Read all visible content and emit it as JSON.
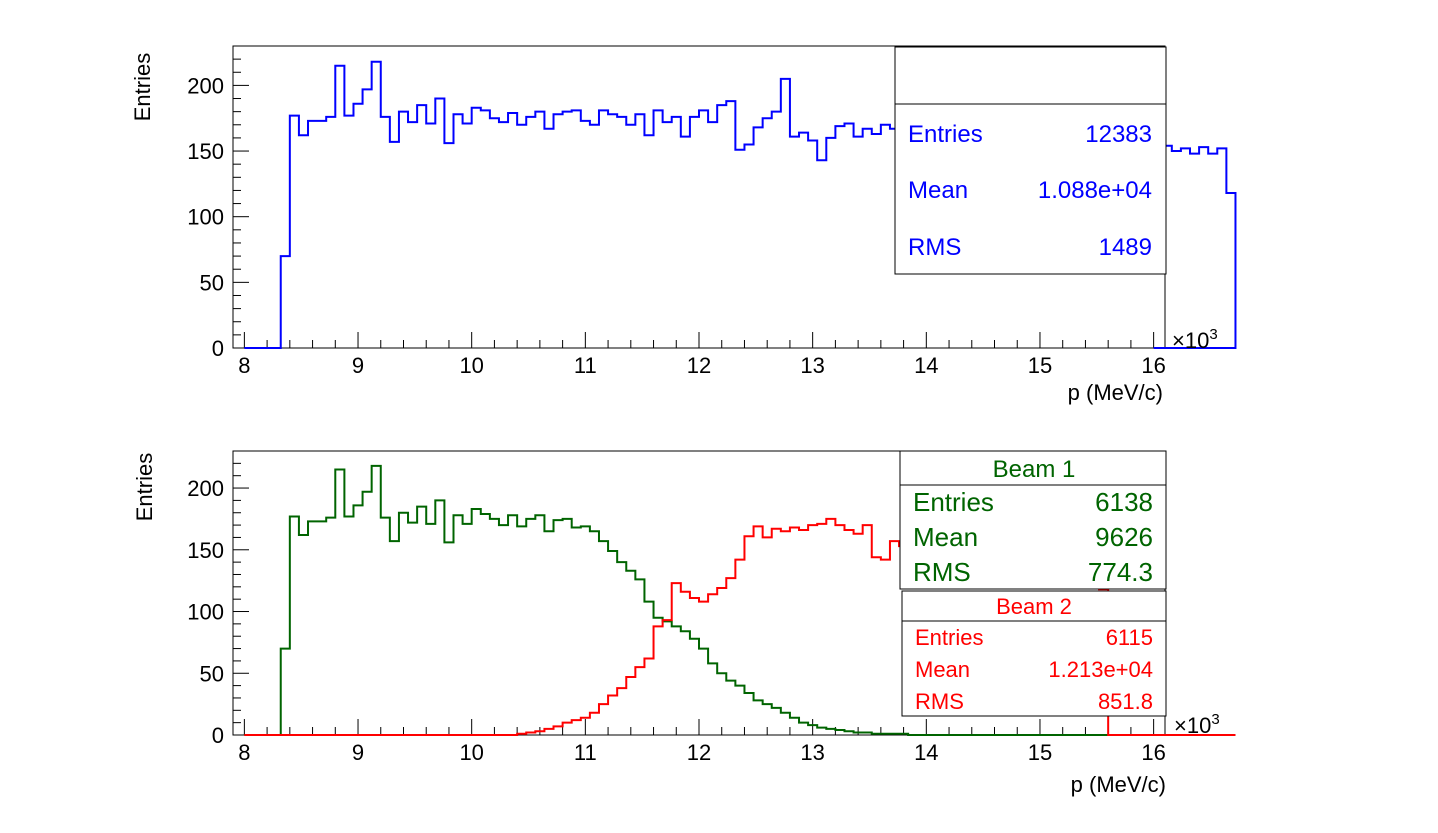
{
  "chart_data": [
    {
      "type": "histogram",
      "xlabel": "p (MeV/c)",
      "ylabel": "Entries",
      "x_multiplier_label": "×10",
      "x_multiplier_exp": "3",
      "xlim": [
        7.9,
        16.1
      ],
      "ylim": [
        0,
        230
      ],
      "x_ticks": [
        8,
        9,
        10,
        11,
        12,
        13,
        14,
        15,
        16
      ],
      "y_ticks": [
        0,
        50,
        100,
        150,
        200
      ],
      "bin_start": 8.0,
      "bin_width": 0.08,
      "series": [
        {
          "color": "#0000ff",
          "values": [
            0,
            0,
            0,
            0,
            70,
            177,
            162,
            173,
            173,
            176,
            215,
            177,
            186,
            197,
            218,
            176,
            157,
            180,
            172,
            185,
            171,
            190,
            156,
            178,
            171,
            183,
            181,
            175,
            172,
            179,
            170,
            176,
            180,
            167,
            178,
            180,
            181,
            173,
            170,
            181,
            178,
            176,
            170,
            178,
            162,
            181,
            172,
            176,
            161,
            176,
            181,
            172,
            185,
            188,
            151,
            155,
            168,
            175,
            180,
            205,
            161,
            164,
            158,
            143,
            160,
            169,
            171,
            161,
            167,
            163,
            170,
            167,
            165,
            163,
            165,
            160,
            163,
            171,
            167,
            164,
            163,
            176,
            171,
            172,
            147,
            144,
            139,
            155,
            157,
            151,
            155,
            157,
            167,
            158,
            151,
            146,
            147,
            155,
            151,
            160,
            149,
            154,
            150,
            152,
            148,
            153,
            148,
            152,
            118
          ]
        }
      ],
      "stats": {
        "title": "",
        "color": "#0000ff",
        "rows": [
          {
            "label": "Entries",
            "value": "12383"
          },
          {
            "label": "Mean",
            "value": "1.088e+04"
          },
          {
            "label": "RMS",
            "value": "1489"
          }
        ]
      }
    },
    {
      "type": "histogram",
      "xlabel": "p (MeV/c)",
      "ylabel": "Entries",
      "x_multiplier_label": "×10",
      "x_multiplier_exp": "3",
      "xlim": [
        7.9,
        16.1
      ],
      "ylim": [
        0,
        230
      ],
      "x_ticks": [
        8,
        9,
        10,
        11,
        12,
        13,
        14,
        15,
        16
      ],
      "y_ticks": [
        0,
        50,
        100,
        150,
        200
      ],
      "bin_start": 8.0,
      "bin_width": 0.08,
      "series": [
        {
          "name": "Beam 1",
          "color": "#006400",
          "values": [
            0,
            0,
            0,
            0,
            70,
            177,
            162,
            173,
            173,
            176,
            215,
            177,
            186,
            197,
            218,
            176,
            157,
            180,
            172,
            185,
            171,
            190,
            156,
            178,
            171,
            183,
            179,
            175,
            170,
            178,
            169,
            175,
            178,
            165,
            174,
            175,
            168,
            169,
            165,
            157,
            149,
            140,
            133,
            126,
            108,
            95,
            92,
            88,
            84,
            78,
            70,
            58,
            50,
            44,
            40,
            34,
            28,
            25,
            22,
            18,
            14,
            10,
            8,
            6,
            5,
            4,
            3,
            2,
            2,
            1,
            1,
            1,
            1,
            0,
            0,
            0,
            0,
            0,
            0,
            0,
            0,
            0,
            0,
            0,
            0,
            0,
            0,
            0,
            0,
            0,
            0,
            0,
            0,
            0,
            0,
            0,
            0,
            0,
            0,
            0,
            0,
            0,
            0,
            0,
            0,
            0,
            0,
            0,
            0
          ]
        },
        {
          "name": "Beam 2",
          "color": "#ff0000",
          "values": [
            0,
            0,
            0,
            0,
            0,
            0,
            0,
            0,
            0,
            0,
            0,
            0,
            0,
            0,
            0,
            0,
            0,
            0,
            0,
            0,
            0,
            0,
            0,
            0,
            0,
            0,
            0,
            0,
            0,
            0,
            1,
            2,
            3,
            5,
            7,
            10,
            12,
            14,
            18,
            25,
            32,
            38,
            47,
            55,
            62,
            88,
            93,
            123,
            116,
            111,
            108,
            114,
            119,
            127,
            142,
            161,
            169,
            160,
            167,
            165,
            168,
            166,
            170,
            171,
            175,
            170,
            166,
            163,
            170,
            144,
            142,
            157,
            153,
            151,
            158,
            168,
            162,
            163,
            152,
            155,
            150,
            147,
            163,
            162,
            159,
            146,
            151,
            155,
            147,
            151,
            147,
            154,
            147,
            151,
            118,
            0,
            0,
            0,
            0,
            0,
            0,
            0,
            0,
            0,
            0,
            0,
            0,
            0,
            0
          ]
        }
      ],
      "stats_boxes": [
        {
          "title": "Beam 1",
          "color": "#006400",
          "rows": [
            {
              "label": "Entries",
              "value": "6138"
            },
            {
              "label": "Mean",
              "value": "9626"
            },
            {
              "label": "RMS",
              "value": "774.3"
            }
          ]
        },
        {
          "title": "Beam 2",
          "color": "#ff0000",
          "rows": [
            {
              "label": "Entries",
              "value": "6115"
            },
            {
              "label": "Mean",
              "value": "1.213e+04"
            },
            {
              "label": "RMS",
              "value": "851.8"
            }
          ]
        }
      ]
    }
  ]
}
